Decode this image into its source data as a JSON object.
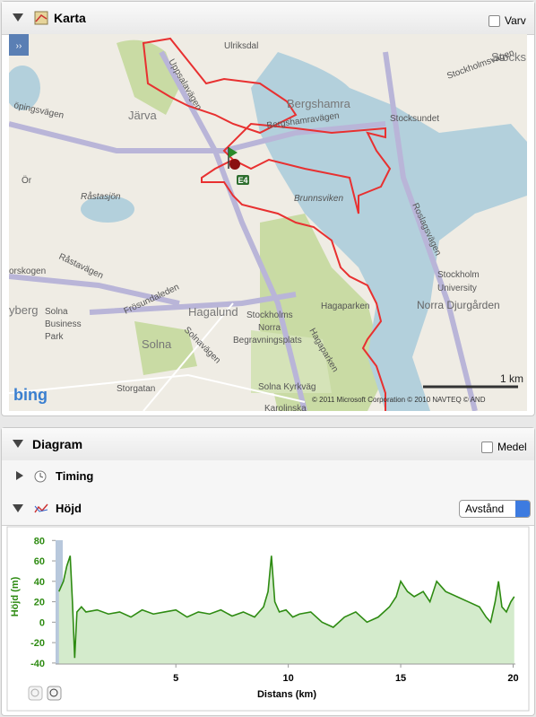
{
  "map_panel": {
    "title": "Karta",
    "lap_checkbox": "Varv",
    "labels": [
      "Ulriksdal",
      "Stocks",
      "Stockholmsvägen",
      "Bergshamra",
      "Stocksundet",
      "Bergshamravägen",
      "Uppsalavägen",
      "öpingsvägen",
      "Järva",
      "Ör",
      "Råstasjön",
      "Brunnsviken",
      "Roslagsvägen",
      "Stockholm",
      "University",
      "Norra Djurgården",
      "Hagaparken",
      "Stockholms",
      "Norra",
      "Begravningsplats",
      "Hagalund",
      "Frösundaleden",
      "Solna",
      "Business",
      "Park",
      "Solna",
      "Solnavägen",
      "Storgatan",
      "Solna Kyrkväg",
      "Råstavägen",
      "orskogen",
      "yberg",
      "Hagaparken",
      "Karolinska"
    ],
    "shield": "E4",
    "scale": "1 km",
    "copyright": "© 2011 Microsoft Corporation © 2010 NAVTEQ © AND",
    "logo": "bing",
    "toggle": "››"
  },
  "diagram_panel": {
    "title": "Diagram",
    "avg_checkbox": "Medel",
    "timing": "Timing",
    "elevation": "Höjd",
    "select": "Avstånd"
  },
  "chart_data": {
    "type": "area",
    "ylabel": "Höjd (m)",
    "xlabel": "Distans (km)",
    "color": "#2e8b12",
    "fill": "#d4ebcc",
    "xlim": [
      -0.35,
      20.1
    ],
    "ylim": [
      -41,
      82
    ],
    "xticks": [
      5,
      10,
      15,
      20
    ],
    "yticks": [
      -40,
      -20,
      0,
      20,
      40,
      60,
      80
    ],
    "series": [
      {
        "name": "Höjd",
        "x": [
          -0.2,
          0,
          0.15,
          0.3,
          0.4,
          0.5,
          0.6,
          0.8,
          1,
          1.5,
          2,
          2.5,
          3,
          3.5,
          4,
          4.5,
          5,
          5.5,
          6,
          6.5,
          7,
          7.5,
          8,
          8.5,
          8.9,
          9.1,
          9.25,
          9.4,
          9.6,
          9.9,
          10.2,
          10.5,
          11,
          11.5,
          12,
          12.5,
          13,
          13.5,
          14,
          14.5,
          14.8,
          15,
          15.3,
          15.6,
          16,
          16.3,
          16.6,
          17,
          17.5,
          18,
          18.5,
          18.8,
          19,
          19.2,
          19.35,
          19.5,
          19.7,
          19.9,
          20.05
        ],
        "values": [
          30,
          40,
          55,
          65,
          20,
          -35,
          10,
          15,
          10,
          12,
          8,
          10,
          5,
          12,
          8,
          10,
          12,
          5,
          10,
          8,
          12,
          6,
          10,
          5,
          15,
          30,
          65,
          20,
          10,
          12,
          5,
          8,
          10,
          0,
          -5,
          5,
          10,
          0,
          5,
          15,
          25,
          40,
          30,
          25,
          30,
          20,
          40,
          30,
          25,
          20,
          15,
          5,
          0,
          20,
          40,
          15,
          10,
          20,
          25
        ]
      }
    ]
  }
}
